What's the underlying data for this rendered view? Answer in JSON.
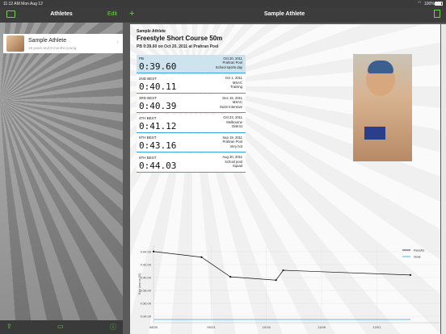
{
  "status_bar": {
    "time": "11:12 AM",
    "date": "Mon Aug 12",
    "battery": "100%"
  },
  "sidebar": {
    "title": "Athletes",
    "edit_label": "Edit",
    "athletes": [
      {
        "name": "Sample Athlete",
        "age": "19 years and 9 months young"
      }
    ]
  },
  "detail": {
    "nav_title": "Sample Athlete",
    "athlete_name": "Sample Athlete",
    "event": "Freestyle Short Course 50m",
    "pb_summary": "PB 0:39.60 on Oct 20, 2011 at Prahran Pool",
    "records": [
      {
        "label": "PB",
        "time": "0:39.60",
        "date": "Oct 20, 2011",
        "place1": "Prahran Pool",
        "place2": "School sports day"
      },
      {
        "label": "2ND BEST",
        "time": "0:40.11",
        "date": "Oct 1, 2011",
        "place1": "MSAC",
        "place2": "Training"
      },
      {
        "label": "3RD BEST",
        "time": "0:40.39",
        "date": "Dec 15, 2011",
        "place1": "MSAC",
        "place2": "Swim Intensive"
      },
      {
        "label": "4TH BEST",
        "time": "0:41.12",
        "date": "Oct 23, 2011",
        "place1": "Melbourne",
        "place2": "District"
      },
      {
        "label": "5TH BEST",
        "time": "0:43.16",
        "date": "Sep 19, 2011",
        "place1": "Prahran Pool",
        "place2": "Very hot"
      },
      {
        "label": "6TH BEST",
        "time": "0:44.03",
        "date": "Aug 30, 2011",
        "place1": "School pool",
        "place2": "Squad"
      }
    ]
  },
  "chart_data": {
    "type": "line",
    "ylabel": "Time (mm:ss.SS)",
    "y_ticks": [
      "0:44.00",
      "0:42.00",
      "0:40.00",
      "0:38.00",
      "0:36.00",
      "0:34.00"
    ],
    "x_ticks": [
      "08/30",
      "09/23",
      "10/16",
      "11/08",
      "12/01"
    ],
    "ylim_seconds": [
      33,
      45
    ],
    "x_range_dates": [
      "2011-08-30",
      "2011-12-15"
    ],
    "series": [
      {
        "name": "Results",
        "color": "#111111",
        "points": [
          [
            "2011-08-30",
            44.03
          ],
          [
            "2011-09-19",
            43.16
          ],
          [
            "2011-10-01",
            40.11
          ],
          [
            "2011-10-20",
            39.6
          ],
          [
            "2011-10-23",
            41.12
          ],
          [
            "2011-12-15",
            40.39
          ]
        ]
      },
      {
        "name": "Goal",
        "color": "#3aa0d8",
        "points": [
          [
            "2011-08-30",
            33.5
          ],
          [
            "2011-12-15",
            33.5
          ]
        ]
      }
    ],
    "legend": "top-right"
  },
  "colors": {
    "accent": "#6dd34a",
    "record_line": "#3aa0d8",
    "pb_highlight": "#cde4ef"
  }
}
